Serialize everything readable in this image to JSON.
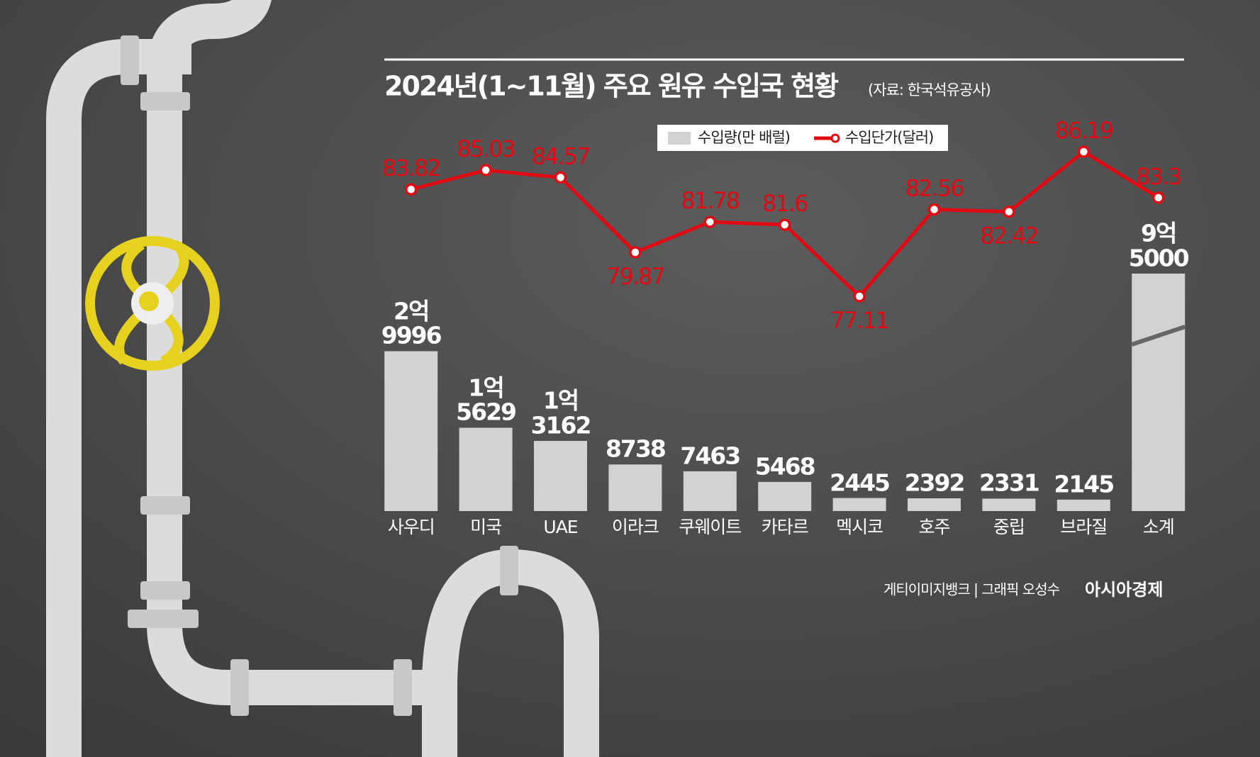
{
  "chart_data": {
    "type": "combo",
    "title": "2024년(1~11월) 주요 원유 수입국 현황",
    "source": "(자료: 한국석유공사)",
    "credit": "게티이미지뱅크 | 그래픽 오성수",
    "brand": "아시아경제",
    "categories": [
      "사우디",
      "미국",
      "UAE",
      "이라크",
      "쿠웨이트",
      "카타르",
      "멕시코",
      "호주",
      "중립",
      "브라질",
      "소계"
    ],
    "series": [
      {
        "name": "수입량(만 배럴)",
        "type": "bar",
        "color": "#d2d2d2",
        "values": [
          29996,
          15629,
          13162,
          8738,
          7463,
          5468,
          2445,
          2392,
          2331,
          2145,
          95000
        ],
        "value_labels": [
          "2억\n9996",
          "1억\n5629",
          "1억\n3162",
          "8738",
          "7463",
          "5468",
          "2445",
          "2392",
          "2331",
          "2145",
          "9억\n5000"
        ]
      },
      {
        "name": "수입단가(달러)",
        "type": "line",
        "color": "#e00a14",
        "values": [
          83.82,
          85.03,
          84.57,
          79.87,
          81.78,
          81.6,
          77.11,
          82.56,
          82.42,
          86.19,
          83.3
        ]
      }
    ]
  }
}
